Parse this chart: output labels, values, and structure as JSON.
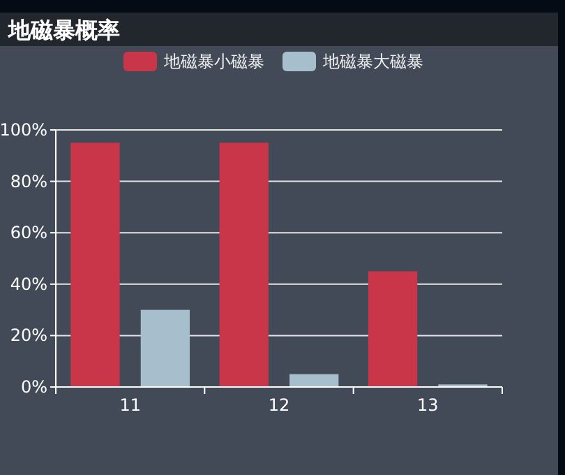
{
  "chart_data": {
    "type": "bar",
    "title": "地磁暴概率",
    "categories": [
      "11",
      "12",
      "13"
    ],
    "series": [
      {
        "name": "地磁暴小磁暴",
        "color": "#c9364a",
        "values": [
          95,
          95,
          45
        ]
      },
      {
        "name": "地磁暴大磁暴",
        "color": "#a7bfcc",
        "values": [
          30,
          5,
          1
        ]
      }
    ],
    "ylim": [
      0,
      100
    ],
    "yticks": [
      {
        "value": 0,
        "label": "0%"
      },
      {
        "value": 20,
        "label": "20%"
      },
      {
        "value": 40,
        "label": "40%"
      },
      {
        "value": 60,
        "label": "60%"
      },
      {
        "value": 80,
        "label": "80%"
      },
      {
        "value": 100,
        "label": "100%"
      }
    ],
    "grid": "y",
    "legend": "top"
  }
}
